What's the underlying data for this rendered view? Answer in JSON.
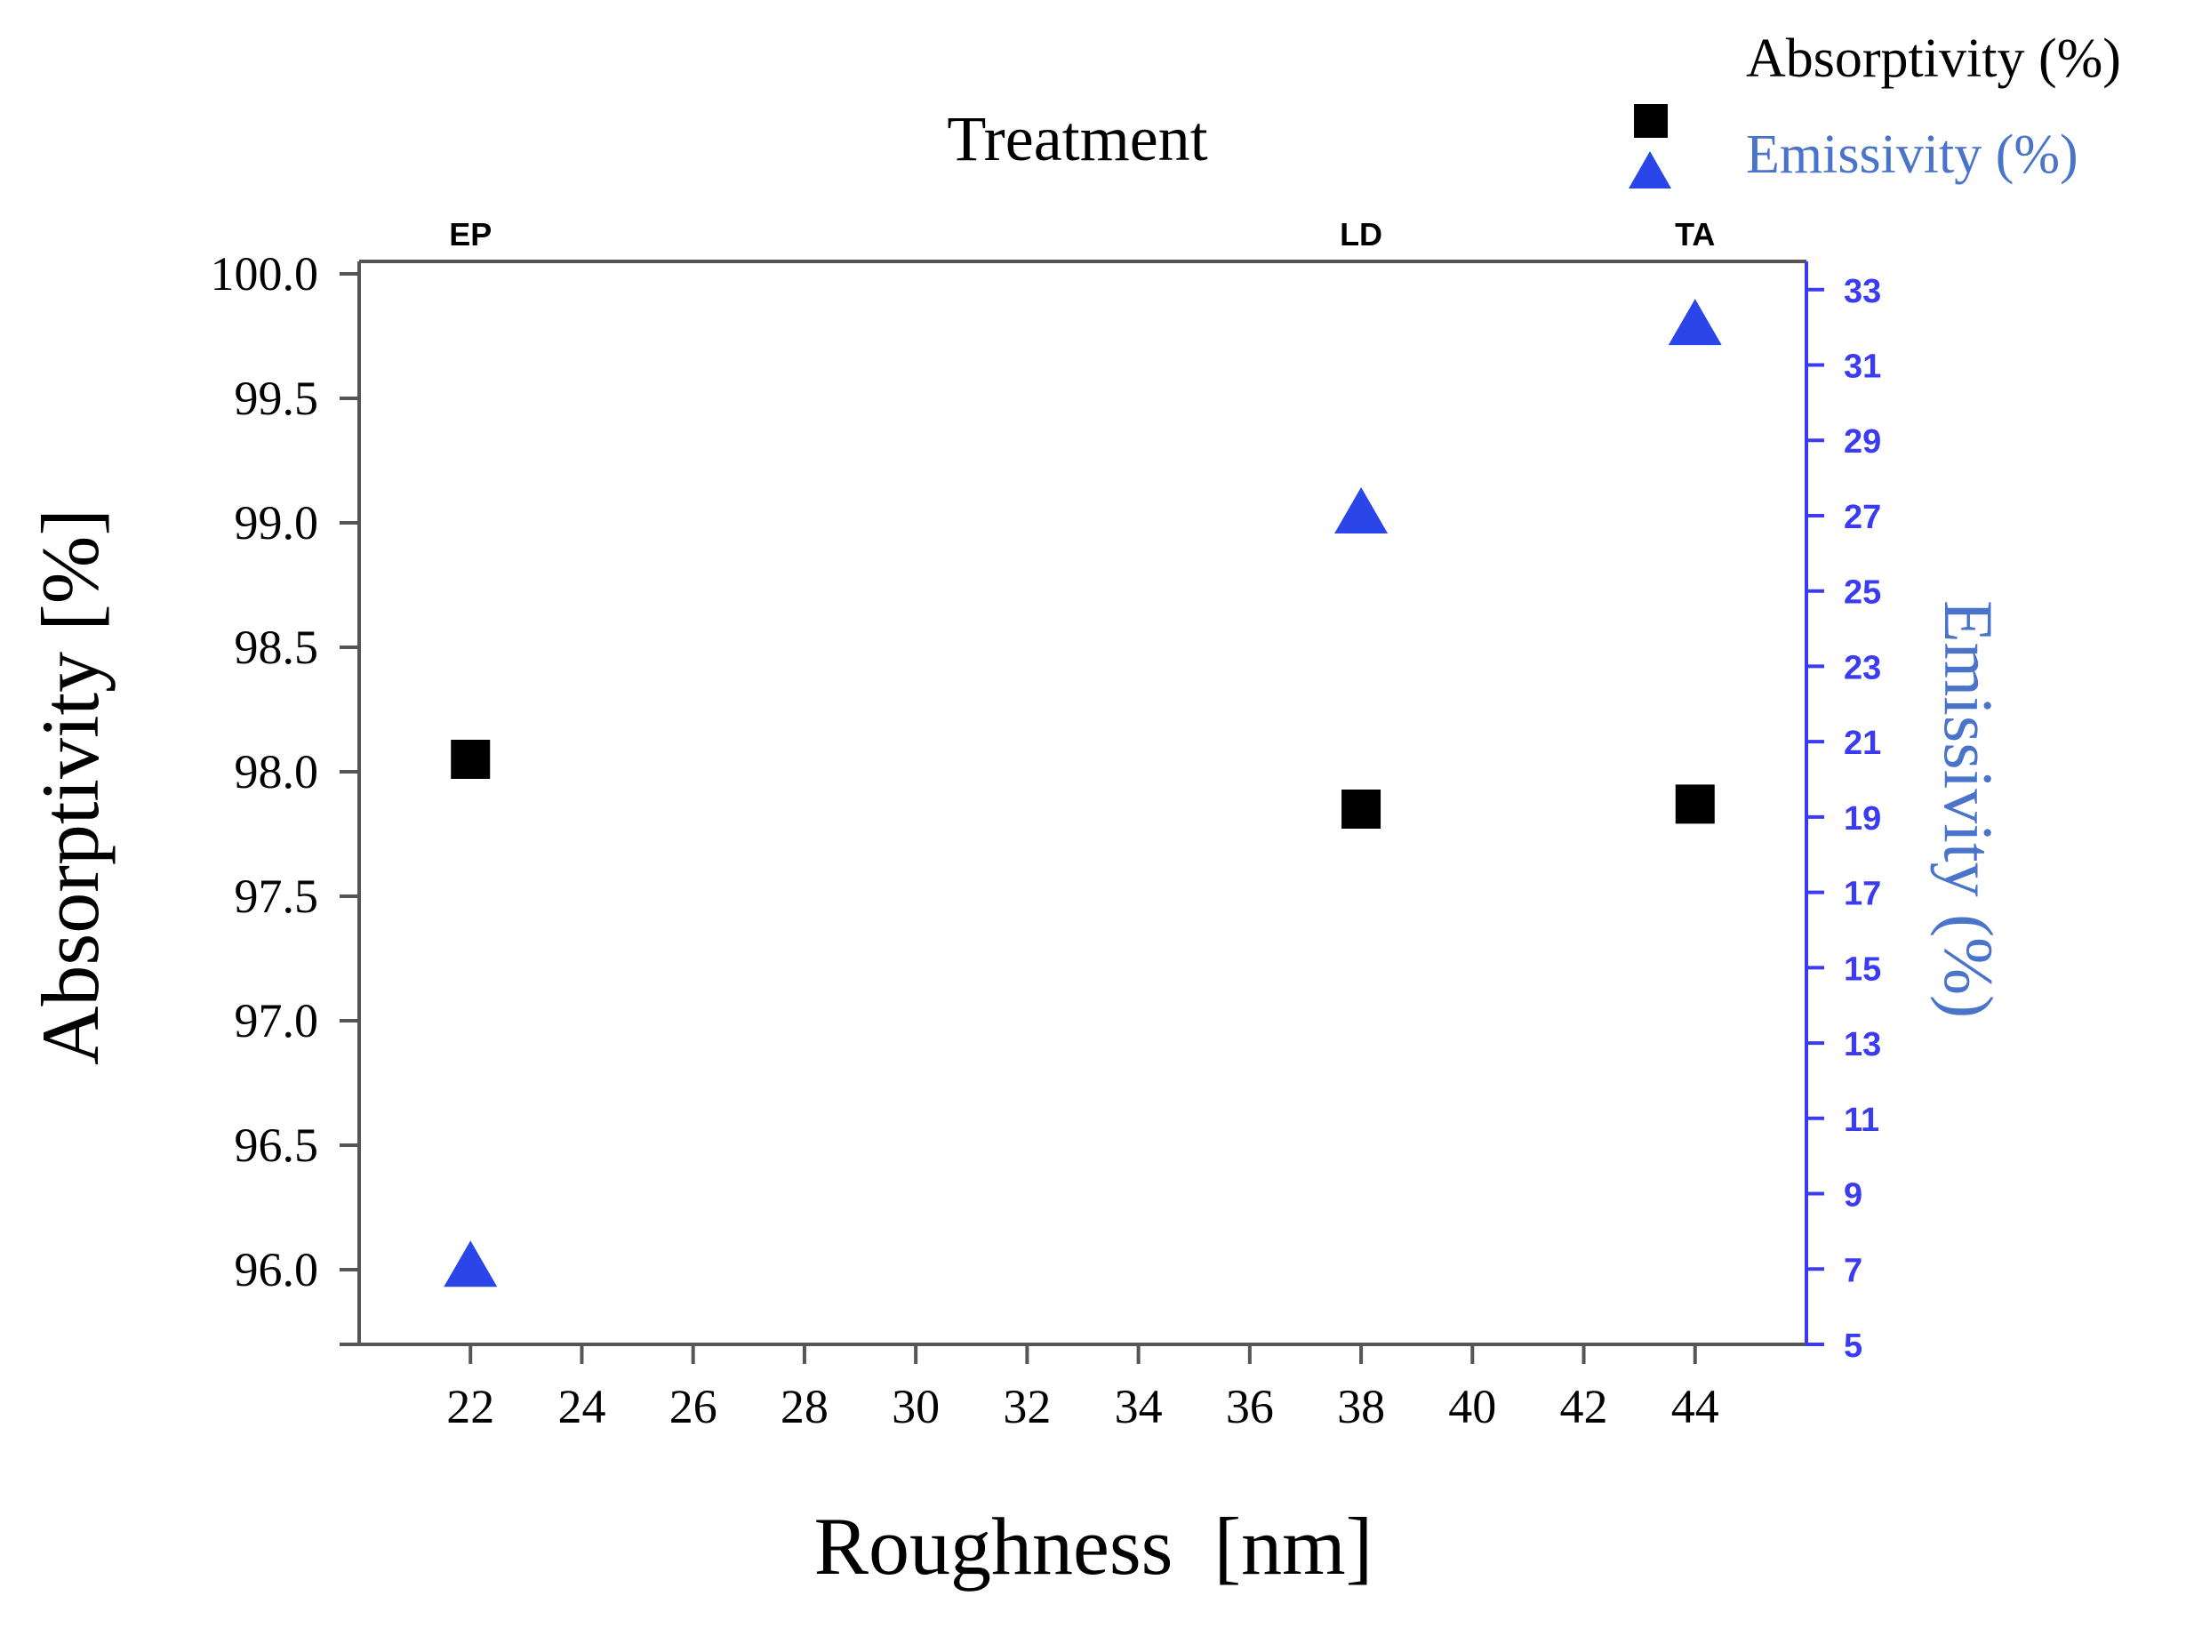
{
  "chart_data": {
    "type": "scatter",
    "title": "Treatment",
    "xlabel": "Roughness  [nm]",
    "ylabel": "Absorptivity [%]",
    "y2label": "Emissivity (%)",
    "xlim": [
      20,
      46
    ],
    "x_ticks": [
      22,
      24,
      26,
      28,
      30,
      32,
      34,
      36,
      38,
      40,
      42,
      44
    ],
    "ylim": [
      95.7,
      100.05
    ],
    "y_ticks": [
      "96.0",
      "96.5",
      "97.0",
      "97.5",
      "98.0",
      "98.5",
      "99.0",
      "99.5",
      "100.0"
    ],
    "y2lim": [
      5,
      33.75
    ],
    "y2_ticks": [
      5,
      7,
      9,
      11,
      13,
      15,
      17,
      19,
      21,
      23,
      25,
      27,
      29,
      31,
      33
    ],
    "top_axis": {
      "label": "Treatment",
      "ticks": [
        {
          "x": 22,
          "label": "EP"
        },
        {
          "x": 38,
          "label": "LD"
        },
        {
          "x": 44,
          "label": "TA"
        }
      ]
    },
    "series": [
      {
        "name": "Absorptivity (%)",
        "axis": "left",
        "marker": "square",
        "color": "#000000",
        "points": [
          {
            "x": 22,
            "y": 98.05
          },
          {
            "x": 38,
            "y": 97.85
          },
          {
            "x": 44,
            "y": 97.87
          }
        ]
      },
      {
        "name": "Emissivity (%)",
        "axis": "right",
        "marker": "triangle",
        "color": "#2a46e8",
        "points": [
          {
            "x": 22,
            "y": 7
          },
          {
            "x": 38,
            "y": 27
          },
          {
            "x": 44,
            "y": 32
          }
        ]
      }
    ],
    "legend": {
      "placement": "top-right",
      "entries": [
        "Absorptivity (%)",
        "Emissivity (%)"
      ]
    },
    "colors": {
      "axis": "#555555",
      "right_axis": "#3b3bf2",
      "right_label": "#4a74c9",
      "legend_emissivity_text": "#4a74c9"
    }
  }
}
